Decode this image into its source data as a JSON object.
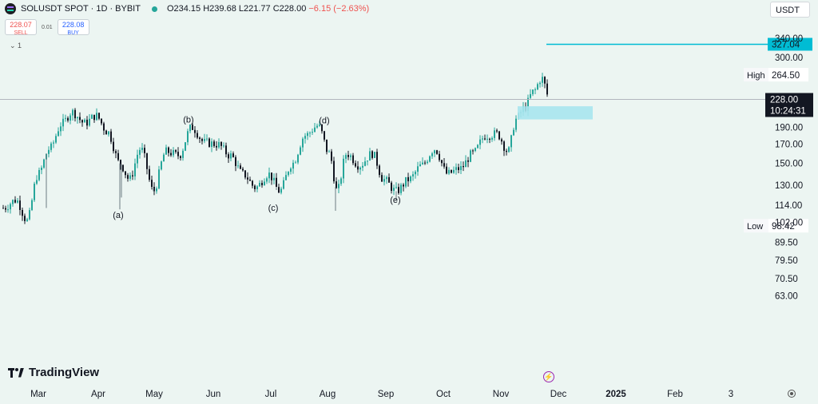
{
  "header": {
    "symbol": "SOLUSDT SPOT · 1D · BYBIT",
    "open": "O234.15",
    "high": "H239.68",
    "low": "L221.77",
    "close": "C228.00",
    "change": "−6.15 (−2.63%)"
  },
  "trade": {
    "sell_price": "228.07",
    "sell_label": "SELL",
    "spread": "0.01",
    "buy_price": "228.08",
    "buy_label": "BUY"
  },
  "legend_toggle": "⌄ 1",
  "currency": "USDT",
  "brand": "TradingView",
  "colors": {
    "up": "#26a69a",
    "down": "#131722",
    "accent": "#00bcd4",
    "zone": "#a8e6ee"
  },
  "chart_data": {
    "type": "candlestick",
    "y_scale": "log",
    "ylim": [
      63.0,
      360.0
    ],
    "y_ticks": [
      {
        "label": "340.00",
        "v": 340
      },
      {
        "label": "300.00",
        "v": 300
      },
      {
        "label": "190.00",
        "v": 190
      },
      {
        "label": "170.00",
        "v": 170
      },
      {
        "label": "150.00",
        "v": 150
      },
      {
        "label": "130.00",
        "v": 130
      },
      {
        "label": "114.00",
        "v": 114
      },
      {
        "label": "102.00",
        "v": 102
      },
      {
        "label": "89.50",
        "v": 89.5
      },
      {
        "label": "79.50",
        "v": 79.5
      },
      {
        "label": "70.50",
        "v": 70.5
      },
      {
        "label": "63.00",
        "v": 63
      }
    ],
    "x_ticks": [
      "Mar",
      "Apr",
      "May",
      "Jun",
      "Jul",
      "Aug",
      "Sep",
      "Oct",
      "Nov",
      "Dec",
      "2025",
      "Feb",
      "3"
    ],
    "bold_x_ticks": [
      "2025"
    ],
    "price_anchors": [
      {
        "month": "Feb end",
        "close": 110
      },
      {
        "month": "Mar mid",
        "close": 195
      },
      {
        "month": "Apr mid",
        "close": 150
      },
      {
        "month": "May mid",
        "close": 180
      },
      {
        "month": "Jun end",
        "close": 130
      },
      {
        "month": "Jul end",
        "close": 185
      },
      {
        "month": "Aug mid",
        "close": 150
      },
      {
        "month": "Sep start",
        "close": 125
      },
      {
        "month": "Oct mid",
        "close": 150
      },
      {
        "month": "Nov mid",
        "close": 210
      },
      {
        "month": "Nov end",
        "close": 228
      }
    ],
    "wave_labels": [
      {
        "text": "(a)",
        "price": 105
      },
      {
        "text": "(b)",
        "price": 196
      },
      {
        "text": "(c)",
        "price": 110
      },
      {
        "text": "(d)",
        "price": 195
      },
      {
        "text": "(e)",
        "price": 116
      }
    ],
    "target_line": {
      "value": 327.04,
      "label": "327.04"
    },
    "current_price": {
      "value": 228.0,
      "label": "228.00",
      "countdown": "10:24:31"
    },
    "high_marker": {
      "label": "High",
      "value": 264.5,
      "value_label": "264.50"
    },
    "low_marker": {
      "label": "Low",
      "value": 98.42,
      "value_label": "98.42"
    },
    "demand_zone": {
      "from": 200,
      "to": 218
    }
  }
}
